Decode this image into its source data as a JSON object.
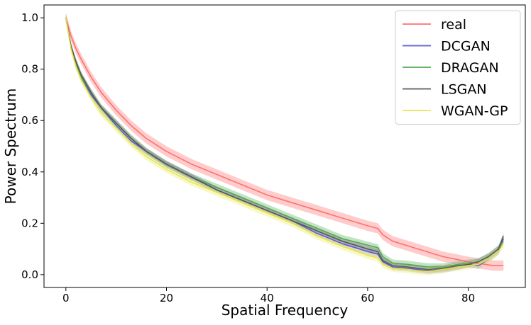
{
  "chart_data": {
    "type": "line",
    "title": "",
    "xlabel": "Spatial Frequency",
    "ylabel": "Power Spectrum",
    "xlim": [
      -4.35,
      91.35
    ],
    "ylim": [
      -0.05,
      1.05
    ],
    "xticks": [
      0,
      20,
      40,
      60,
      80
    ],
    "yticks": [
      0.0,
      0.2,
      0.4,
      0.6,
      0.8,
      1.0
    ],
    "ytick_labels": [
      "0.0",
      "0.2",
      "0.4",
      "0.6",
      "0.8",
      "1.0"
    ],
    "grid": false,
    "legend_position": "top-right",
    "band": "shaded band = ± spread around each curve",
    "series": [
      {
        "name": "real",
        "color": "#ff6b6b",
        "fill": "#ff9a9a",
        "band_width": 0.02,
        "x": [
          0,
          1,
          2,
          3,
          5,
          7,
          10,
          13,
          16,
          20,
          25,
          30,
          35,
          40,
          45,
          50,
          55,
          60,
          62,
          63,
          65,
          70,
          75,
          80,
          85,
          87
        ],
        "y": [
          1.0,
          0.93,
          0.88,
          0.84,
          0.77,
          0.71,
          0.64,
          0.58,
          0.53,
          0.48,
          0.43,
          0.39,
          0.35,
          0.31,
          0.28,
          0.25,
          0.22,
          0.19,
          0.18,
          0.155,
          0.13,
          0.1,
          0.07,
          0.05,
          0.035,
          0.035
        ]
      },
      {
        "name": "DCGAN",
        "color": "#5555cc",
        "fill": "#8c8cdd",
        "band_width": 0.012,
        "x": [
          0,
          1,
          2,
          3,
          5,
          7,
          10,
          13,
          16,
          20,
          25,
          30,
          35,
          40,
          45,
          50,
          55,
          60,
          62,
          63,
          65,
          68,
          70,
          72,
          75,
          78,
          80,
          82,
          84,
          86,
          87
        ],
        "y": [
          1.0,
          0.89,
          0.82,
          0.77,
          0.7,
          0.65,
          0.58,
          0.52,
          0.48,
          0.43,
          0.38,
          0.33,
          0.29,
          0.25,
          0.21,
          0.16,
          0.12,
          0.09,
          0.08,
          0.05,
          0.03,
          0.025,
          0.02,
          0.015,
          0.02,
          0.03,
          0.04,
          0.035,
          0.06,
          0.09,
          0.14
        ]
      },
      {
        "name": "DRAGAN",
        "color": "#4fa64f",
        "fill": "#86c886",
        "band_width": 0.014,
        "x": [
          0,
          1,
          2,
          3,
          5,
          7,
          10,
          13,
          16,
          20,
          25,
          30,
          35,
          40,
          45,
          50,
          55,
          60,
          62,
          63,
          65,
          68,
          70,
          72,
          75,
          78,
          80,
          82,
          84,
          86,
          87
        ],
        "y": [
          1.0,
          0.89,
          0.82,
          0.77,
          0.71,
          0.65,
          0.59,
          0.53,
          0.48,
          0.43,
          0.38,
          0.34,
          0.3,
          0.26,
          0.22,
          0.18,
          0.14,
          0.115,
          0.105,
          0.07,
          0.045,
          0.04,
          0.035,
          0.03,
          0.03,
          0.04,
          0.045,
          0.05,
          0.07,
          0.1,
          0.13
        ]
      },
      {
        "name": "LSGAN",
        "color": "#555555",
        "fill": "#8c8c8c",
        "band_width": 0.012,
        "x": [
          0,
          1,
          2,
          3,
          5,
          7,
          10,
          13,
          16,
          20,
          25,
          30,
          35,
          40,
          45,
          50,
          55,
          60,
          62,
          63,
          65,
          68,
          70,
          72,
          75,
          78,
          80,
          82,
          84,
          86,
          87
        ],
        "y": [
          1.0,
          0.89,
          0.83,
          0.78,
          0.71,
          0.65,
          0.59,
          0.53,
          0.48,
          0.43,
          0.38,
          0.33,
          0.29,
          0.25,
          0.21,
          0.17,
          0.13,
          0.1,
          0.09,
          0.055,
          0.035,
          0.03,
          0.025,
          0.02,
          0.025,
          0.035,
          0.04,
          0.05,
          0.07,
          0.1,
          0.15
        ]
      },
      {
        "name": "WGAN-GP",
        "color": "#e6e64a",
        "fill": "#f2f28a",
        "band_width": 0.014,
        "x": [
          0,
          1,
          2,
          3,
          5,
          7,
          10,
          13,
          16,
          20,
          25,
          30,
          35,
          40,
          45,
          50,
          55,
          60,
          62,
          63,
          65,
          68,
          70,
          72,
          75,
          78,
          80,
          82,
          84,
          86,
          87
        ],
        "y": [
          1.0,
          0.88,
          0.81,
          0.76,
          0.69,
          0.63,
          0.57,
          0.51,
          0.46,
          0.41,
          0.36,
          0.32,
          0.28,
          0.24,
          0.2,
          0.15,
          0.11,
          0.075,
          0.065,
          0.04,
          0.025,
          0.02,
          0.015,
          0.012,
          0.02,
          0.03,
          0.035,
          0.04,
          0.06,
          0.09,
          0.12
        ]
      }
    ]
  }
}
